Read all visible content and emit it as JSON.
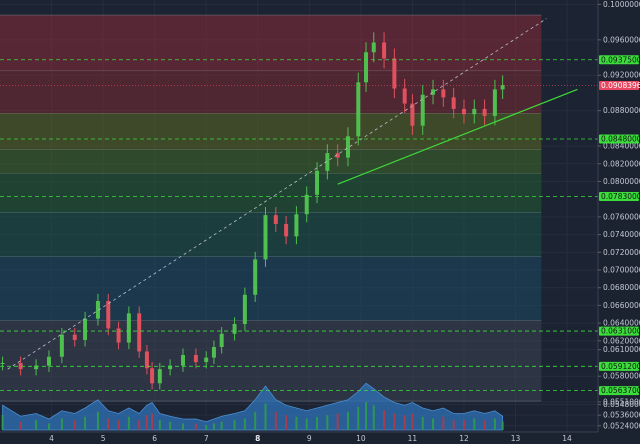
{
  "chart_data": {
    "type": "candlestick",
    "title": "",
    "xlabel": "",
    "ylabel": "",
    "xlim": [
      3,
      14.6
    ],
    "ylim": [
      0.0517,
      0.1005
    ],
    "x_ticks": [
      "4",
      "5",
      "6",
      "7",
      "8",
      "9",
      "10",
      "11",
      "12",
      "13",
      "14"
    ],
    "x_tick_values": [
      4,
      5,
      6,
      7,
      8,
      9,
      10,
      11,
      12,
      13,
      14
    ],
    "x_tick_bold": [
      "8"
    ],
    "y_ticks": [
      "0.05240000",
      "0.05360000",
      "0.05480000",
      "0.05510000",
      "0.05800000",
      "0.06100000",
      "0.06200000",
      "0.06400000",
      "0.06600000",
      "0.06800000",
      "0.07000000",
      "0.07200000",
      "0.07400000",
      "0.07600000",
      "0.08000000",
      "0.08200000",
      "0.08400000",
      "0.08800000",
      "0.09200000",
      "0.09600000",
      "0.10000000"
    ],
    "y_tick_values": [
      0.0524,
      0.0536,
      0.0548,
      0.0551,
      0.058,
      0.061,
      0.062,
      0.064,
      0.066,
      0.068,
      0.07,
      0.072,
      0.074,
      0.076,
      0.08,
      0.082,
      0.084,
      0.088,
      0.092,
      0.096,
      0.1
    ],
    "fib_zones": [
      {
        "from": 0.0988,
        "to": 0.0925,
        "color": "#8a2c3a"
      },
      {
        "from": 0.0925,
        "to": 0.0877,
        "color": "#7a2c33"
      },
      {
        "from": 0.0877,
        "to": 0.0836,
        "color": "#5b6a22"
      },
      {
        "from": 0.0836,
        "to": 0.0809,
        "color": "#3f6a2a"
      },
      {
        "from": 0.0809,
        "to": 0.0765,
        "color": "#235c35"
      },
      {
        "from": 0.0765,
        "to": 0.0715,
        "color": "#1d5449"
      },
      {
        "from": 0.0715,
        "to": 0.0643,
        "color": "#1d4a64"
      },
      {
        "from": 0.0643,
        "to": 0.0552,
        "color": "#3c4352"
      }
    ],
    "levels": [
      {
        "value": 0.09375,
        "label": "0.09375000",
        "color": "#3ddc3d"
      },
      {
        "value": 0.0848,
        "label": "0.08480000",
        "color": "#3ddc3d"
      },
      {
        "value": 0.0783,
        "label": "0.07830000",
        "color": "#3ddc3d"
      },
      {
        "value": 0.0631,
        "label": "0.06310000",
        "color": "#3ddc3d"
      },
      {
        "value": 0.05912,
        "label": "0.05912000",
        "color": "#3ddc3d"
      },
      {
        "value": 0.05637,
        "label": "0.05637000",
        "color": "#3ddc3d"
      }
    ],
    "current_price": {
      "value": 0.09083968,
      "label": "0.09083968",
      "color": "#e8475f"
    },
    "trendline_support": {
      "x": [
        9.55,
        14.2
      ],
      "y": [
        0.0797,
        0.0904
      ],
      "color": "#3fd83a"
    },
    "trendline_dashed": {
      "x": [
        3.15,
        13.6
      ],
      "y": [
        0.0588,
        0.0984
      ],
      "color": "#b9bec8"
    },
    "price_x": [
      3.05,
      3.4,
      3.7,
      3.95,
      4.2,
      4.45,
      4.65,
      4.9,
      5.1,
      5.3,
      5.5,
      5.7,
      5.85,
      5.95,
      6.1,
      6.3,
      6.55,
      6.8,
      7.0,
      7.15,
      7.3,
      7.55,
      7.75,
      7.95,
      8.15,
      8.35,
      8.55,
      8.75,
      8.95,
      9.15,
      9.35,
      9.55,
      9.75,
      9.95,
      10.1,
      10.25,
      10.45,
      10.65,
      10.85,
      11.0,
      11.2,
      11.4,
      11.6,
      11.8,
      12.0,
      12.2,
      12.4,
      12.6,
      12.75
    ],
    "price_y": [
      0.0595,
      0.0588,
      0.0592,
      0.0602,
      0.0627,
      0.0621,
      0.0645,
      0.0665,
      0.0634,
      0.0618,
      0.0651,
      0.0608,
      0.0589,
      0.0572,
      0.0588,
      0.0592,
      0.0604,
      0.0596,
      0.0601,
      0.0613,
      0.0628,
      0.0639,
      0.0672,
      0.0712,
      0.0762,
      0.0752,
      0.0738,
      0.0763,
      0.0785,
      0.0812,
      0.0832,
      0.0827,
      0.0851,
      0.0912,
      0.0946,
      0.0957,
      0.0939,
      0.0905,
      0.0888,
      0.0863,
      0.0898,
      0.0904,
      0.0895,
      0.0882,
      0.0876,
      0.0882,
      0.0874,
      0.0904,
      0.0909
    ],
    "volume_x": [
      3.05,
      3.4,
      3.7,
      3.95,
      4.2,
      4.45,
      4.65,
      4.9,
      5.1,
      5.3,
      5.5,
      5.7,
      5.85,
      5.95,
      6.1,
      6.3,
      6.55,
      6.8,
      7.0,
      7.15,
      7.3,
      7.55,
      7.75,
      7.95,
      8.15,
      8.35,
      8.55,
      8.75,
      8.95,
      9.15,
      9.35,
      9.55,
      9.75,
      9.95,
      10.1,
      10.25,
      10.45,
      10.65,
      10.85,
      11.0,
      11.2,
      11.4,
      11.6,
      11.8,
      12.0,
      12.2,
      12.4,
      12.6,
      12.75
    ],
    "volume": [
      0.45,
      0.25,
      0.3,
      0.2,
      0.35,
      0.3,
      0.4,
      0.55,
      0.35,
      0.3,
      0.4,
      0.3,
      0.45,
      0.5,
      0.3,
      0.25,
      0.2,
      0.2,
      0.15,
      0.2,
      0.25,
      0.3,
      0.35,
      0.55,
      0.8,
      0.55,
      0.45,
      0.4,
      0.35,
      0.4,
      0.45,
      0.5,
      0.55,
      0.7,
      0.85,
      0.75,
      0.6,
      0.5,
      0.45,
      0.5,
      0.4,
      0.35,
      0.4,
      0.3,
      0.3,
      0.35,
      0.3,
      0.35,
      0.25
    ]
  }
}
